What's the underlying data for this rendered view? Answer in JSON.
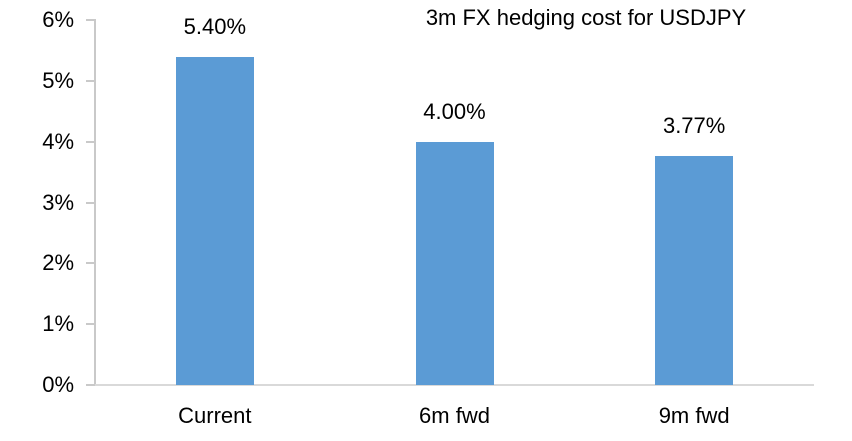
{
  "chart_data": {
    "type": "bar",
    "title": "3m FX hedging cost for USDJPY",
    "categories": [
      "Current",
      "6m fwd",
      "9m fwd"
    ],
    "values": [
      5.4,
      4.0,
      3.77
    ],
    "value_labels": [
      "5.40%",
      "4.00%",
      "3.77%"
    ],
    "xlabel": "",
    "ylabel": "",
    "ylim": [
      0,
      6
    ],
    "ytick_labels": [
      "0%",
      "1%",
      "2%",
      "3%",
      "4%",
      "5%",
      "6%"
    ],
    "grid": "off",
    "legend": "none",
    "colors": {
      "bar": "#5B9BD5",
      "y_axis_line": "#C9C9C9",
      "x_axis_line": "#D9D9D9",
      "tick": "#C9C9C9",
      "text": "#000000",
      "background": "#FFFFFF"
    }
  }
}
